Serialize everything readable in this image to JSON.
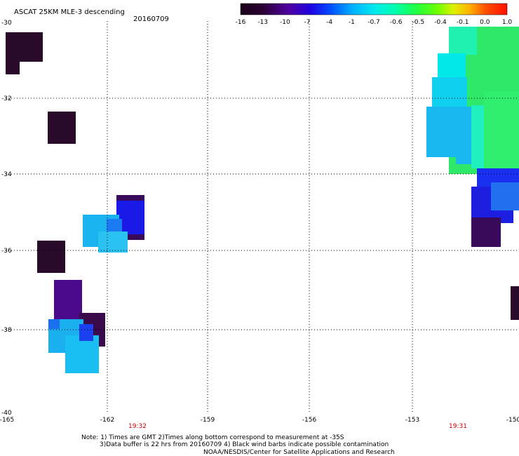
{
  "header": {
    "title": "ASCAT 25KM MLE-3 descending",
    "date": "20160709"
  },
  "colorbar": {
    "labels": [
      "-16",
      "-13",
      "-10",
      "-7",
      "-4",
      "-1",
      "-0.7",
      "-0.6",
      "-0.5",
      "-0.4",
      "-0.1",
      "0.0",
      "1.0"
    ]
  },
  "axes": {
    "y_labels": [
      "-30",
      "-32",
      "-34",
      "-36",
      "-38",
      "-40"
    ],
    "x_labels": [
      "-165",
      "-162",
      "-159",
      "-156",
      "-153",
      "-150"
    ]
  },
  "times": [
    "19:32",
    "19:31"
  ],
  "notes": {
    "line1": "Note: 1) Times are GMT 2)Times along bottom correspond to measurement at -35S",
    "line2": "3)Data buffer is 22 hrs from 20160709 4) Black wind barbs indicate possible contamination",
    "line3": "NOAA/NESDIS/Center for Satellite Applications and Research"
  },
  "colors": {
    "dark_purple": "#2a0a2a",
    "purple": "#4a0a8a",
    "blue": "#1a1aee",
    "light_blue": "#19b4f0",
    "cyan": "#00f0f0",
    "green": "#28ee48"
  }
}
